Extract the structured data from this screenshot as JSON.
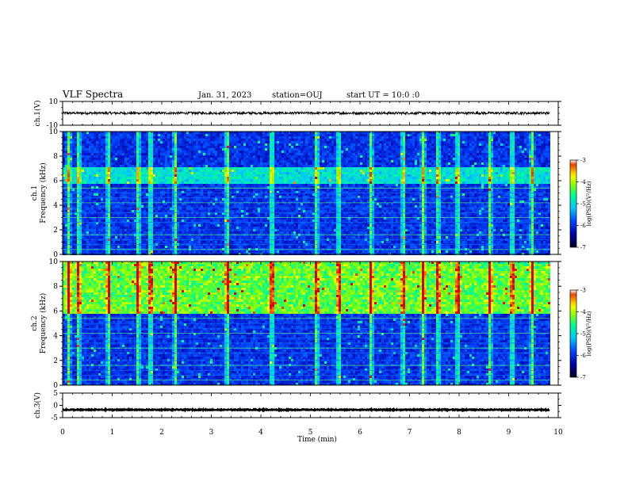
{
  "header": {
    "title": "VLF Spectra",
    "date": "Jan. 31, 2023",
    "station": "station=OUJ",
    "start": "start UT = 10:0 :0"
  },
  "chart_data": [
    {
      "type": "line",
      "panel": "ch1-waveform",
      "ylabel": "ch.1(V)",
      "ylim": [
        -10,
        10
      ],
      "yticks": [
        "10",
        "-10"
      ],
      "xlim": [
        0,
        10
      ],
      "series": [
        {
          "level": 0.2,
          "noise_amplitude": 1.0,
          "x_end": 9.83
        }
      ]
    },
    {
      "type": "heatmap",
      "panel": "ch1-spectrogram",
      "ylabel": "ch.1\nFrequency (kHz)",
      "ylim": [
        0,
        10
      ],
      "yticks": [
        "0",
        "2",
        "4",
        "6",
        "8",
        "10"
      ],
      "xlim": [
        0,
        10
      ],
      "x_end": 9.83,
      "intensity_band_khz": [
        5.8,
        7.2
      ],
      "bright_time_min": [
        0.1,
        0.3,
        0.9,
        1.5,
        1.75,
        2.25,
        3.3,
        4.2,
        5.1,
        5.55,
        6.2,
        6.85,
        7.25,
        7.55,
        7.95,
        8.6,
        9.05,
        9.45
      ],
      "colorbar": {
        "label": "log(PSD)(V²/Hz)",
        "min": -7,
        "max": -3,
        "ticks": [
          "-3",
          "-4",
          "-5",
          "-6",
          "-7"
        ]
      }
    },
    {
      "type": "heatmap",
      "panel": "ch2-spectrogram",
      "ylabel": "ch.2\nFrequency (kHz)",
      "ylim": [
        0,
        10
      ],
      "yticks": [
        "0",
        "2",
        "4",
        "6",
        "8",
        "10"
      ],
      "xlim": [
        0,
        10
      ],
      "x_end": 9.83,
      "intensity_band_khz": [
        5.8,
        10
      ],
      "bright_time_min": [
        0.1,
        0.3,
        0.9,
        1.5,
        1.75,
        2.25,
        3.3,
        4.2,
        5.1,
        5.55,
        6.2,
        6.85,
        7.25,
        7.55,
        7.95,
        8.6,
        9.05,
        9.45
      ],
      "colorbar": {
        "label": "log(PSD)(V²/Hz)",
        "min": -7,
        "max": -3,
        "ticks": [
          "-3",
          "-4",
          "-5",
          "-6",
          "-7"
        ]
      }
    },
    {
      "type": "line",
      "panel": "ch3-waveform",
      "ylabel": "ch.3(V)",
      "ylim": [
        -5,
        5
      ],
      "yticks": [
        "5",
        "0",
        "-5"
      ],
      "xlim": [
        0,
        10
      ],
      "series": [
        {
          "level": -1.8,
          "noise_amplitude": 0.2,
          "x_end": 9.83
        }
      ]
    }
  ],
  "xaxis": {
    "label": "Time (min)",
    "ticks": [
      "0",
      "1",
      "2",
      "3",
      "4",
      "5",
      "6",
      "7",
      "8",
      "9",
      "10"
    ]
  },
  "colors": {
    "axis": "#000000",
    "colormap": [
      "#000010",
      "#0000a0",
      "#0040ff",
      "#00c0ff",
      "#00ff80",
      "#80ff00",
      "#ffff00",
      "#ff8000",
      "#e00000",
      "#ffffff"
    ]
  }
}
